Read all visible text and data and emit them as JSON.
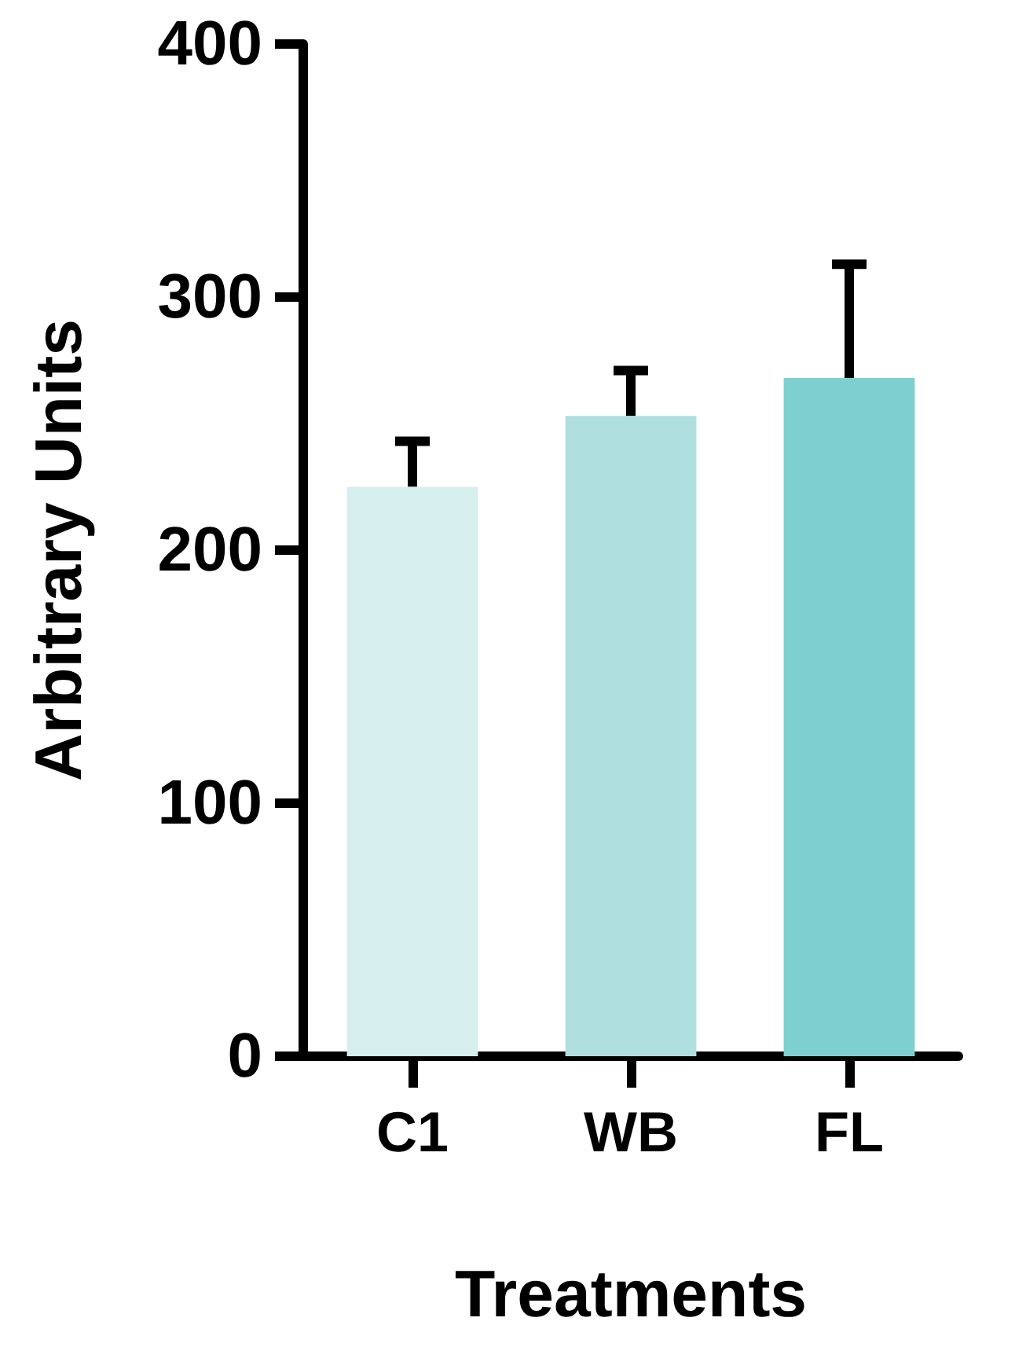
{
  "chart_data": {
    "type": "bar",
    "xlabel": "Treatments",
    "ylabel": "Arbitrary Units",
    "categories": [
      "C1",
      "WB",
      "FL"
    ],
    "values": [
      225,
      253,
      268
    ],
    "colors": [
      "#d5eeee",
      "#afe0df",
      "#7ecfcf"
    ],
    "errors": [
      [
        225,
        243
      ],
      [
        253,
        271
      ],
      [
        268,
        313
      ]
    ],
    "ylim": [
      0,
      400
    ],
    "yticks": [
      0,
      100,
      200,
      300,
      400
    ],
    "grid": false
  }
}
